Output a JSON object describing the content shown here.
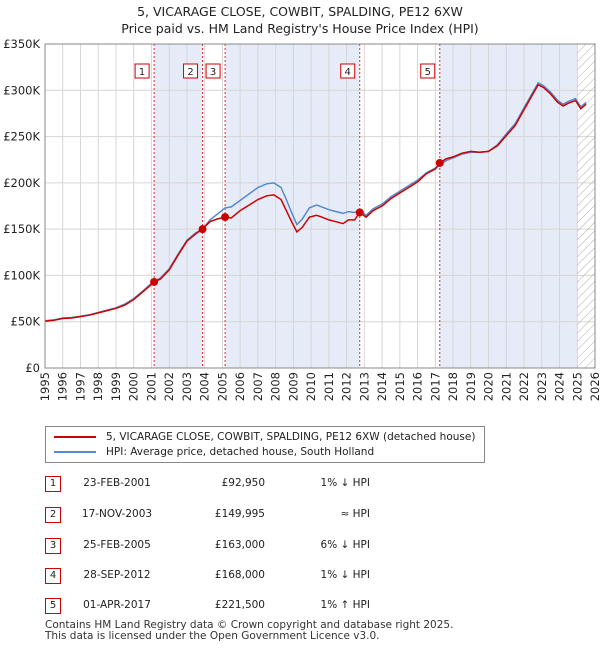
{
  "title_line1": "5, VICARAGE CLOSE, COWBIT, SPALDING, PE12 6XW",
  "title_line2": "Price paid vs. HM Land Registry's House Price Index (HPI)",
  "colors": {
    "price_paid": "#cc0000",
    "hpi": "#5588cc",
    "band": "#e6ecf7",
    "grid": "#d6d6d6",
    "hatch": "#999999"
  },
  "chart_data": {
    "type": "line",
    "xlim": [
      1995,
      2026
    ],
    "ylim": [
      0,
      350000
    ],
    "x_ticks": [
      "1995",
      "1996",
      "1997",
      "1998",
      "1999",
      "2000",
      "2001",
      "2002",
      "2003",
      "2004",
      "2005",
      "2006",
      "2007",
      "2008",
      "2009",
      "2010",
      "2011",
      "2012",
      "2013",
      "2014",
      "2015",
      "2016",
      "2017",
      "2018",
      "2019",
      "2020",
      "2021",
      "2022",
      "2023",
      "2024",
      "2025",
      "2026"
    ],
    "y_ticks": [
      {
        "value": 0,
        "label": "£0"
      },
      {
        "value": 50000,
        "label": "£50K"
      },
      {
        "value": 100000,
        "label": "£100K"
      },
      {
        "value": 150000,
        "label": "£150K"
      },
      {
        "value": 200000,
        "label": "£200K"
      },
      {
        "value": 250000,
        "label": "£250K"
      },
      {
        "value": 300000,
        "label": "£300K"
      },
      {
        "value": 350000,
        "label": "£350K"
      }
    ],
    "forecast_from": 2025.0,
    "series": [
      {
        "name": "5, VICARAGE CLOSE, COWBIT, SPALDING, PE12 6XW (detached house)",
        "color": "#cc0000",
        "points": [
          [
            1995.0,
            50500
          ],
          [
            1995.5,
            51500
          ],
          [
            1996.0,
            53500
          ],
          [
            1996.5,
            54000
          ],
          [
            1997.0,
            55500
          ],
          [
            1997.5,
            57000
          ],
          [
            1998.0,
            59500
          ],
          [
            1998.5,
            62000
          ],
          [
            1999.0,
            64500
          ],
          [
            1999.5,
            68000
          ],
          [
            2000.0,
            74000
          ],
          [
            2000.5,
            82000
          ],
          [
            2001.15,
            92950
          ],
          [
            2001.5,
            96000
          ],
          [
            2002.0,
            106000
          ],
          [
            2002.5,
            122000
          ],
          [
            2003.0,
            137000
          ],
          [
            2003.5,
            145000
          ],
          [
            2003.88,
            149995
          ],
          [
            2004.3,
            158000
          ],
          [
            2004.7,
            161000
          ],
          [
            2005.15,
            163000
          ],
          [
            2005.5,
            162000
          ],
          [
            2006.0,
            170000
          ],
          [
            2006.5,
            176000
          ],
          [
            2007.0,
            182000
          ],
          [
            2007.5,
            186000
          ],
          [
            2007.9,
            187000
          ],
          [
            2008.3,
            182000
          ],
          [
            2008.6,
            170000
          ],
          [
            2008.9,
            158000
          ],
          [
            2009.2,
            147000
          ],
          [
            2009.5,
            152000
          ],
          [
            2009.9,
            163000
          ],
          [
            2010.3,
            165000
          ],
          [
            2010.6,
            163000
          ],
          [
            2011.0,
            160000
          ],
          [
            2011.4,
            158000
          ],
          [
            2011.8,
            156000
          ],
          [
            2012.1,
            160000
          ],
          [
            2012.45,
            160000
          ],
          [
            2012.74,
            168000
          ],
          [
            2013.1,
            163000
          ],
          [
            2013.5,
            170000
          ],
          [
            2014.0,
            175000
          ],
          [
            2014.5,
            183000
          ],
          [
            2015.0,
            189000
          ],
          [
            2015.5,
            195000
          ],
          [
            2016.0,
            201000
          ],
          [
            2016.5,
            210000
          ],
          [
            2017.0,
            215000
          ],
          [
            2017.25,
            221500
          ],
          [
            2017.6,
            226000
          ],
          [
            2018.0,
            228000
          ],
          [
            2018.5,
            232000
          ],
          [
            2019.0,
            234000
          ],
          [
            2019.5,
            233000
          ],
          [
            2020.0,
            234000
          ],
          [
            2020.5,
            240000
          ],
          [
            2021.0,
            251000
          ],
          [
            2021.5,
            262000
          ],
          [
            2022.0,
            279000
          ],
          [
            2022.5,
            296000
          ],
          [
            2022.8,
            306000
          ],
          [
            2023.1,
            303000
          ],
          [
            2023.5,
            296000
          ],
          [
            2023.9,
            287000
          ],
          [
            2024.2,
            283000
          ],
          [
            2024.5,
            286000
          ],
          [
            2024.9,
            289000
          ],
          [
            2025.2,
            280000
          ],
          [
            2025.5,
            285000
          ]
        ]
      },
      {
        "name": "HPI: Average price, detached house, South Holland",
        "color": "#5588cc",
        "points": [
          [
            1995.0,
            51000
          ],
          [
            1995.5,
            52000
          ],
          [
            1996.0,
            54000
          ],
          [
            1996.5,
            54500
          ],
          [
            1997.0,
            56000
          ],
          [
            1997.5,
            57500
          ],
          [
            1998.0,
            60000
          ],
          [
            1998.5,
            62500
          ],
          [
            1999.0,
            65000
          ],
          [
            1999.5,
            69000
          ],
          [
            2000.0,
            75000
          ],
          [
            2000.5,
            83000
          ],
          [
            2001.15,
            94000
          ],
          [
            2001.5,
            97000
          ],
          [
            2002.0,
            107000
          ],
          [
            2002.5,
            123000
          ],
          [
            2003.0,
            138000
          ],
          [
            2003.5,
            146000
          ],
          [
            2003.88,
            150000
          ],
          [
            2004.3,
            160000
          ],
          [
            2004.7,
            166000
          ],
          [
            2005.15,
            173000
          ],
          [
            2005.5,
            174000
          ],
          [
            2006.0,
            181000
          ],
          [
            2006.5,
            188000
          ],
          [
            2007.0,
            195000
          ],
          [
            2007.5,
            199000
          ],
          [
            2007.9,
            200000
          ],
          [
            2008.3,
            195000
          ],
          [
            2008.6,
            182000
          ],
          [
            2008.9,
            168000
          ],
          [
            2009.2,
            155000
          ],
          [
            2009.5,
            161000
          ],
          [
            2009.9,
            173000
          ],
          [
            2010.3,
            176000
          ],
          [
            2010.6,
            174000
          ],
          [
            2011.0,
            171000
          ],
          [
            2011.4,
            169000
          ],
          [
            2011.8,
            167000
          ],
          [
            2012.1,
            169000
          ],
          [
            2012.45,
            168000
          ],
          [
            2012.74,
            170000
          ],
          [
            2013.1,
            165000
          ],
          [
            2013.5,
            172000
          ],
          [
            2014.0,
            177000
          ],
          [
            2014.5,
            185000
          ],
          [
            2015.0,
            191000
          ],
          [
            2015.5,
            197000
          ],
          [
            2016.0,
            203000
          ],
          [
            2016.5,
            211000
          ],
          [
            2017.0,
            216000
          ],
          [
            2017.25,
            219000
          ],
          [
            2017.6,
            224000
          ],
          [
            2018.0,
            227000
          ],
          [
            2018.5,
            231000
          ],
          [
            2019.0,
            233000
          ],
          [
            2019.5,
            233000
          ],
          [
            2020.0,
            234000
          ],
          [
            2020.5,
            241000
          ],
          [
            2021.0,
            253000
          ],
          [
            2021.5,
            264000
          ],
          [
            2022.0,
            281000
          ],
          [
            2022.5,
            298000
          ],
          [
            2022.8,
            308000
          ],
          [
            2023.1,
            305000
          ],
          [
            2023.5,
            298000
          ],
          [
            2023.9,
            289000
          ],
          [
            2024.2,
            285000
          ],
          [
            2024.5,
            288000
          ],
          [
            2024.9,
            291000
          ],
          [
            2025.2,
            282000
          ],
          [
            2025.5,
            287000
          ]
        ]
      }
    ],
    "sales": [
      {
        "id": "1",
        "x": 2001.15,
        "price": 92950
      },
      {
        "id": "2",
        "x": 2003.88,
        "price": 149995
      },
      {
        "id": "3",
        "x": 2005.15,
        "price": 163000
      },
      {
        "id": "4",
        "x": 2012.74,
        "price": 168000
      },
      {
        "id": "5",
        "x": 2017.25,
        "price": 221500
      }
    ],
    "bands": [
      [
        2001.15,
        2003.88
      ],
      [
        2005.15,
        2012.74
      ],
      [
        2017.25,
        2025.0
      ]
    ]
  },
  "legend": {
    "property": "5, VICARAGE CLOSE, COWBIT, SPALDING, PE12 6XW (detached house)",
    "hpi": "HPI: Average price, detached house, South Holland"
  },
  "sales_table": [
    {
      "num": "1",
      "date": "23-FEB-2001",
      "price": "£92,950",
      "rel": "1% ↓ HPI"
    },
    {
      "num": "2",
      "date": "17-NOV-2003",
      "price": "£149,995",
      "rel": "≈ HPI"
    },
    {
      "num": "3",
      "date": "25-FEB-2005",
      "price": "£163,000",
      "rel": "6% ↓ HPI"
    },
    {
      "num": "4",
      "date": "28-SEP-2012",
      "price": "£168,000",
      "rel": "1% ↓ HPI"
    },
    {
      "num": "5",
      "date": "01-APR-2017",
      "price": "£221,500",
      "rel": "1% ↑ HPI"
    }
  ],
  "footer_line1": "Contains HM Land Registry data © Crown copyright and database right 2025.",
  "footer_line2": "This data is licensed under the Open Government Licence v3.0."
}
